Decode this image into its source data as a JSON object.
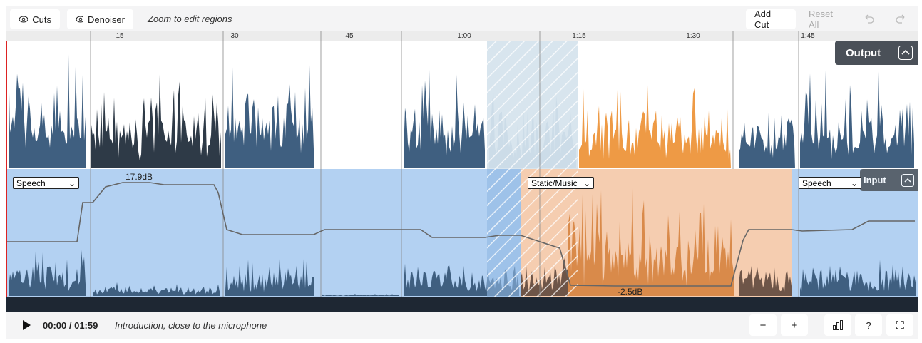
{
  "toolbar": {
    "toggles": [
      "Cuts",
      "Denoiser"
    ],
    "hint": "Zoom to edit regions",
    "actions": [
      "Add Cut",
      "Reset All"
    ]
  },
  "timeline": {
    "ticks": [
      "15",
      "30",
      "45",
      "1:00",
      "1:15",
      "1:30",
      "1:45"
    ]
  },
  "output_panel": {
    "label": "Output"
  },
  "input_panel": {
    "label": "Input",
    "regions": [
      {
        "type": "Speech",
        "gain": "17.9dB"
      },
      {
        "type": "Static/Music",
        "gain": "-2.5dB"
      },
      {
        "type": "Speech"
      }
    ]
  },
  "player": {
    "time": "00:00 / 01:59",
    "description": "Introduction, close to the microphone",
    "zoom_out": "−",
    "zoom_in": "+",
    "help": "?"
  }
}
